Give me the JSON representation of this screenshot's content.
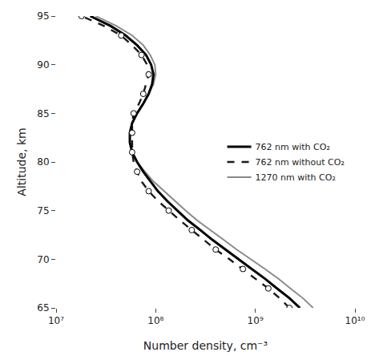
{
  "chart_data": {
    "type": "line",
    "title": "",
    "xlabel": "Number density, cm⁻³",
    "ylabel": "Altitude, km",
    "log": "x",
    "xlim": [
      10000000.0,
      10000000000.0
    ],
    "xticks": [
      {
        "value": 10000000.0,
        "label": "10⁷"
      },
      {
        "value": 100000000.0,
        "label": "10⁸"
      },
      {
        "value": 1000000000.0,
        "label": "10⁹"
      },
      {
        "value": 10000000000.0,
        "label": "10¹⁰"
      }
    ],
    "ylim": [
      65,
      95
    ],
    "yticks": [
      65,
      70,
      75,
      80,
      85,
      90,
      95
    ],
    "grid": false,
    "legend": "right",
    "series": [
      {
        "name": "762 nm with CO₂",
        "color": "#000000",
        "line_style": "solid",
        "x": [
          2800000000.0,
          2200000000.0,
          1650000000.0,
          1250000000.0,
          920000000.0,
          680000000.0,
          500000000.0,
          370000000.0,
          280000000.0,
          210000000.0,
          165000000.0,
          130000000.0,
          105000000.0,
          88000000.0,
          75000000.0,
          65000000.0,
          58000000.0,
          55000000.0,
          55000000.0,
          58000000.0,
          65000000.0,
          75000000.0,
          85000000.0,
          92000000.0,
          95000000.0,
          90000000.0,
          80000000.0,
          65000000.0,
          50000000.0,
          35000000.0,
          22000000.0
        ],
        "values": [
          65,
          66,
          67,
          68,
          69,
          70,
          71,
          72,
          73,
          74,
          75,
          76,
          77,
          78,
          79,
          80,
          81,
          82,
          83,
          84,
          85,
          86,
          87,
          88,
          89,
          90,
          91,
          92,
          93,
          94,
          95
        ]
      },
      {
        "name": "762 nm without CO₂",
        "color": "#1a1a1a",
        "line_style": "dashed",
        "x": [
          2200000000.0,
          1750000000.0,
          1350000000.0,
          1000000000.0,
          750000000.0,
          550000000.0,
          400000000.0,
          300000000.0,
          230000000.0,
          175000000.0,
          135000000.0,
          105000000.0,
          85000000.0,
          72000000.0,
          65000000.0,
          60000000.0,
          58000000.0,
          58000000.0,
          58000000.0,
          58000000.0,
          60000000.0,
          68000000.0,
          75000000.0,
          80000000.0,
          85000000.0,
          82000000.0,
          72000000.0,
          58000000.0,
          45000000.0,
          30000000.0,
          18000000.0
        ],
        "values": [
          65,
          66,
          67,
          68,
          69,
          70,
          71,
          72,
          73,
          74,
          75,
          76,
          77,
          78,
          79,
          80,
          81,
          82,
          83,
          84,
          85,
          86,
          87,
          88,
          89,
          90,
          91,
          92,
          93,
          94,
          95
        ]
      },
      {
        "name": "1270 nm with CO₂",
        "color": "#888888",
        "line_style": "solid",
        "x": [
          3800000000.0,
          3000000000.0,
          2250000000.0,
          1700000000.0,
          1250000000.0,
          900000000.0,
          650000000.0,
          480000000.0,
          350000000.0,
          260000000.0,
          200000000.0,
          155000000.0,
          120000000.0,
          95000000.0,
          78000000.0,
          65000000.0,
          58000000.0,
          55000000.0,
          55000000.0,
          58000000.0,
          65000000.0,
          75000000.0,
          85000000.0,
          95000000.0,
          100000000.0,
          98000000.0,
          88000000.0,
          75000000.0,
          58000000.0,
          40000000.0,
          25000000.0
        ],
        "values": [
          65,
          66,
          67,
          68,
          69,
          70,
          71,
          72,
          73,
          74,
          75,
          76,
          77,
          78,
          79,
          80,
          81,
          82,
          83,
          84,
          85,
          86,
          87,
          88,
          89,
          90,
          91,
          92,
          93,
          94,
          95
        ]
      },
      {
        "color": "#ffffff",
        "marker": "circle",
        "line_style": "none",
        "x": [
          2200000000.0,
          1350000000.0,
          750000000.0,
          400000000.0,
          230000000.0,
          135000000.0,
          85000000.0,
          65000000.0,
          58000000.0,
          58000000.0,
          60000000.0,
          75000000.0,
          85000000.0,
          72000000.0,
          45000000.0,
          18000000.0
        ],
        "values": [
          65,
          67,
          69,
          71,
          73,
          75,
          77,
          79,
          81,
          83,
          85,
          87,
          89,
          91,
          93,
          95
        ]
      }
    ]
  }
}
